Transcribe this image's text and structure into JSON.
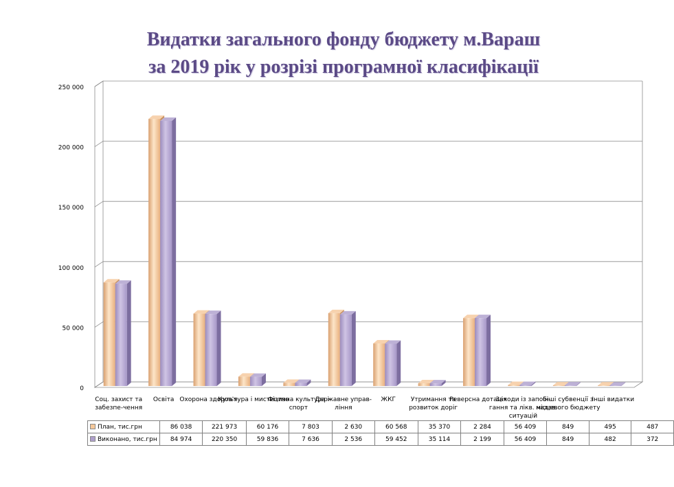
{
  "title_line1": "Видатки загального фонду бюджету м.Вараш",
  "title_line2": "за 2019 рік у розрізі програмної класифікації",
  "chart_data": {
    "type": "bar",
    "title": "Видатки загального фонду бюджету м.Вараш за 2019 рік у розрізі програмної класифікації",
    "categories": [
      [
        "Соц. захист та",
        "забезпе-чення"
      ],
      [
        "Освіта"
      ],
      [
        "Охорона здоров'я"
      ],
      [
        "Культура і мистецтво"
      ],
      [
        "Фізична культура і",
        "спорт"
      ],
      [
        "Державне управ-",
        "ління"
      ],
      [
        "ЖКГ"
      ],
      [
        "Утримання та",
        "розвиток доріг"
      ],
      [
        "Реверсна дотація"
      ],
      [
        "Заходи із запобі-",
        "гання та лікв. надзв.",
        "ситуацій"
      ],
      [
        "Інші субвенції з",
        "місцевого бюджету"
      ],
      [
        "Інші видатки"
      ]
    ],
    "series": [
      {
        "name": "План, тис.грн",
        "values": [
          86038,
          221973,
          60176,
          7803,
          2630,
          60568,
          35370,
          2284,
          56409,
          849,
          495,
          487
        ],
        "labels": [
          "86 038",
          "221 973",
          "60 176",
          "7 803",
          "2 630",
          "60 568",
          "35 370",
          "2 284",
          "56 409",
          "849",
          "495",
          "487"
        ],
        "color": "#f5c89a"
      },
      {
        "name": "Виконано, тис.грн",
        "values": [
          84974,
          220350,
          59836,
          7636,
          2536,
          59452,
          35114,
          2199,
          56409,
          849,
          482,
          372
        ],
        "labels": [
          "84 974",
          "220 350",
          "59 836",
          "7 636",
          "2 536",
          "59 452",
          "35 114",
          "2 199",
          "56 409",
          "849",
          "482",
          "372"
        ],
        "color": "#ae9fcb"
      }
    ],
    "ylim": [
      0,
      250000
    ],
    "yticks": [
      "0",
      "50 000",
      "100 000",
      "150 000",
      "200 000",
      "250 000"
    ],
    "grid": true,
    "legend": "data-table"
  }
}
